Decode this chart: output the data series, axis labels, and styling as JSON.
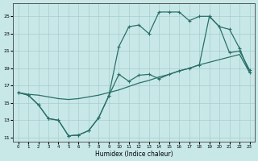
{
  "xlabel": "Humidex (Indice chaleur)",
  "x_ticks": [
    0,
    1,
    2,
    3,
    4,
    5,
    6,
    7,
    8,
    9,
    10,
    11,
    12,
    13,
    14,
    15,
    16,
    17,
    18,
    19,
    20,
    21,
    22,
    23
  ],
  "y_ticks": [
    11,
    13,
    15,
    17,
    19,
    21,
    23,
    25
  ],
  "ylim": [
    10.5,
    26.5
  ],
  "xlim": [
    -0.5,
    23.5
  ],
  "bg_color": "#c8e8e8",
  "grid_color": "#a8cccc",
  "line_color": "#2a7068",
  "line_trend_y": [
    16.2,
    16.0,
    15.9,
    15.7,
    15.5,
    15.4,
    15.5,
    15.7,
    15.9,
    16.2,
    16.5,
    16.9,
    17.3,
    17.6,
    18.0,
    18.3,
    18.7,
    19.0,
    19.4,
    19.7,
    20.0,
    20.3,
    20.6,
    18.5
  ],
  "line_a_y": [
    16.2,
    15.9,
    14.8,
    13.2,
    13.0,
    11.2,
    11.3,
    11.8,
    13.3,
    15.8,
    18.3,
    17.5,
    18.2,
    18.3,
    17.8,
    18.3,
    18.7,
    19.0,
    19.4,
    25.0,
    23.8,
    23.5,
    21.3,
    18.5
  ],
  "line_b_y": [
    16.2,
    15.9,
    14.8,
    13.2,
    13.0,
    11.2,
    11.3,
    11.8,
    13.3,
    15.8,
    21.5,
    23.8,
    24.0,
    23.0,
    25.5,
    25.5,
    25.5,
    24.5,
    25.0,
    25.0,
    23.8,
    20.8,
    21.0,
    18.8
  ]
}
